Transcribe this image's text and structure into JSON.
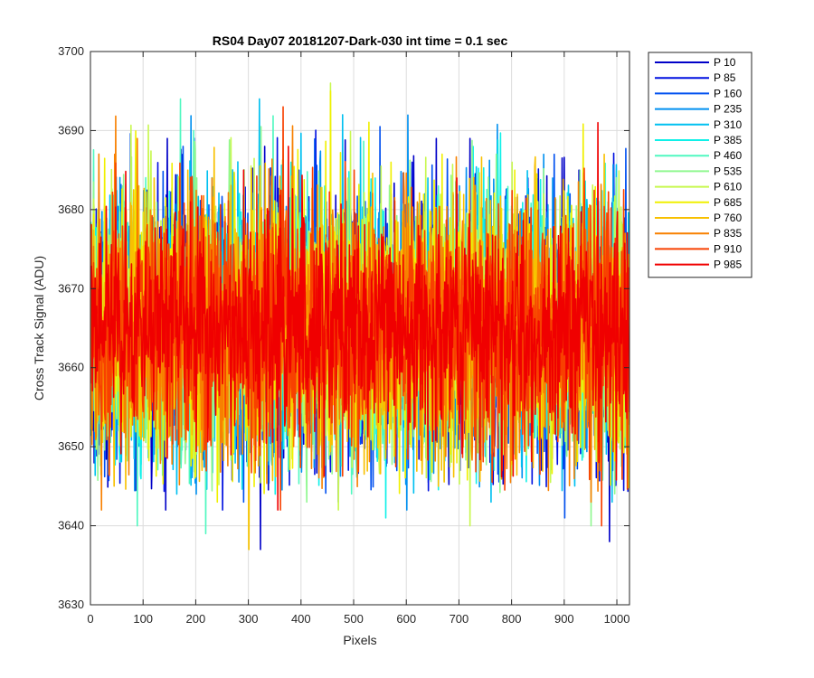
{
  "chart_data": {
    "type": "line",
    "title": "RS04 Day07 20181207-Dark-030 int time = 0.1 sec",
    "xlabel": "Pixels",
    "ylabel": "Cross Track Signal (ADU)",
    "xlim": [
      0,
      1024
    ],
    "ylim": [
      3630,
      3700
    ],
    "xticks": [
      0,
      100,
      200,
      300,
      400,
      500,
      600,
      700,
      800,
      900,
      1000
    ],
    "yticks": [
      3630,
      3640,
      3650,
      3660,
      3670,
      3680,
      3690,
      3700
    ],
    "grid": true,
    "legend_location": "outside-top-right",
    "n_pixels": 1024,
    "series": [
      {
        "name": "P 10",
        "color": "#0000C8",
        "mean": 3665,
        "std": 8.0,
        "peaks": [
          [
            145,
            3689
          ],
          [
            330,
            3688
          ],
          [
            720,
            3689
          ],
          [
            322,
            3637
          ],
          [
            142,
            3642
          ],
          [
            985,
            3638
          ]
        ]
      },
      {
        "name": "P 85",
        "color": "#0010E0",
        "mean": 3665,
        "std": 8.0,
        "peaks": [
          [
            395,
            3685
          ],
          [
            610,
            3686
          ],
          [
            830,
            3684
          ],
          [
            250,
            3642
          ],
          [
            470,
            3643
          ]
        ]
      },
      {
        "name": "P 160",
        "color": "#0050F0",
        "mean": 3665,
        "std": 8.0,
        "peaks": [
          [
            175,
            3688
          ],
          [
            880,
            3687
          ],
          [
            910,
            3682
          ],
          [
            900,
            3641
          ],
          [
            290,
            3643
          ]
        ]
      },
      {
        "name": "P 235",
        "color": "#0090F0",
        "mean": 3665,
        "std": 8.0,
        "peaks": [
          [
            435,
            3686
          ],
          [
            860,
            3687
          ],
          [
            700,
            3683
          ],
          [
            600,
            3642
          ],
          [
            200,
            3644
          ]
        ]
      },
      {
        "name": "P 310",
        "color": "#00C0F0",
        "mean": 3665,
        "std": 8.0,
        "peaks": [
          [
            320,
            3694
          ],
          [
            478,
            3692
          ],
          [
            640,
            3684
          ],
          [
            990,
            3643
          ],
          [
            760,
            3643
          ]
        ]
      },
      {
        "name": "P 385",
        "color": "#10F0E8",
        "mean": 3665,
        "std": 8.0,
        "peaks": [
          [
            380,
            3686
          ],
          [
            540,
            3684
          ],
          [
            90,
            3680
          ],
          [
            350,
            3644
          ],
          [
            560,
            3641
          ]
        ]
      },
      {
        "name": "P 460",
        "color": "#50F8C0",
        "mean": 3665,
        "std": 8.0,
        "peaks": [
          [
            170,
            3694
          ],
          [
            195,
            3690
          ],
          [
            660,
            3683
          ],
          [
            88,
            3640
          ],
          [
            218,
            3639
          ]
        ]
      },
      {
        "name": "P 535",
        "color": "#90F890",
        "mean": 3665,
        "std": 8.0,
        "peaks": [
          [
            770,
            3687
          ],
          [
            60,
            3683
          ],
          [
            950,
            3640
          ],
          [
            410,
            3643
          ]
        ]
      },
      {
        "name": "P 610",
        "color": "#C8F850",
        "mean": 3665,
        "std": 8.0,
        "peaks": [
          [
            455,
            3696
          ],
          [
            800,
            3686
          ],
          [
            860,
            3682
          ],
          [
            720,
            3640
          ],
          [
            470,
            3642
          ]
        ]
      },
      {
        "name": "P 685",
        "color": "#F0F000",
        "mean": 3665,
        "std": 8.0,
        "peaks": [
          [
            240,
            3692
          ],
          [
            455,
            3695
          ],
          [
            570,
            3686
          ],
          [
            805,
            3685
          ],
          [
            300,
            3637
          ],
          [
            240,
            3643
          ]
        ]
      },
      {
        "name": "P 760",
        "color": "#F8C000",
        "mean": 3665,
        "std": 8.0,
        "peaks": [
          [
            975,
            3687
          ],
          [
            120,
            3684
          ],
          [
            300,
            3637
          ],
          [
            660,
            3645
          ]
        ]
      },
      {
        "name": "P 835",
        "color": "#F88000",
        "mean": 3665,
        "std": 8.0,
        "peaks": [
          [
            88,
            3689
          ],
          [
            45,
            3687
          ],
          [
            230,
            3684
          ],
          [
            20,
            3642
          ],
          [
            950,
            3643
          ]
        ]
      },
      {
        "name": "P 910",
        "color": "#F84000",
        "mean": 3665,
        "std": 8.0,
        "peaks": [
          [
            365,
            3693
          ],
          [
            500,
            3685
          ],
          [
            970,
            3640
          ],
          [
            360,
            3642
          ]
        ]
      },
      {
        "name": "P 985",
        "color": "#F00000",
        "mean": 3665,
        "std": 6.5,
        "peaks": [
          [
            963,
            3691
          ],
          [
            375,
            3688
          ],
          [
            290,
            3685
          ],
          [
            695,
            3684
          ],
          [
            355,
            3642
          ],
          [
            965,
            3648
          ]
        ]
      }
    ]
  }
}
